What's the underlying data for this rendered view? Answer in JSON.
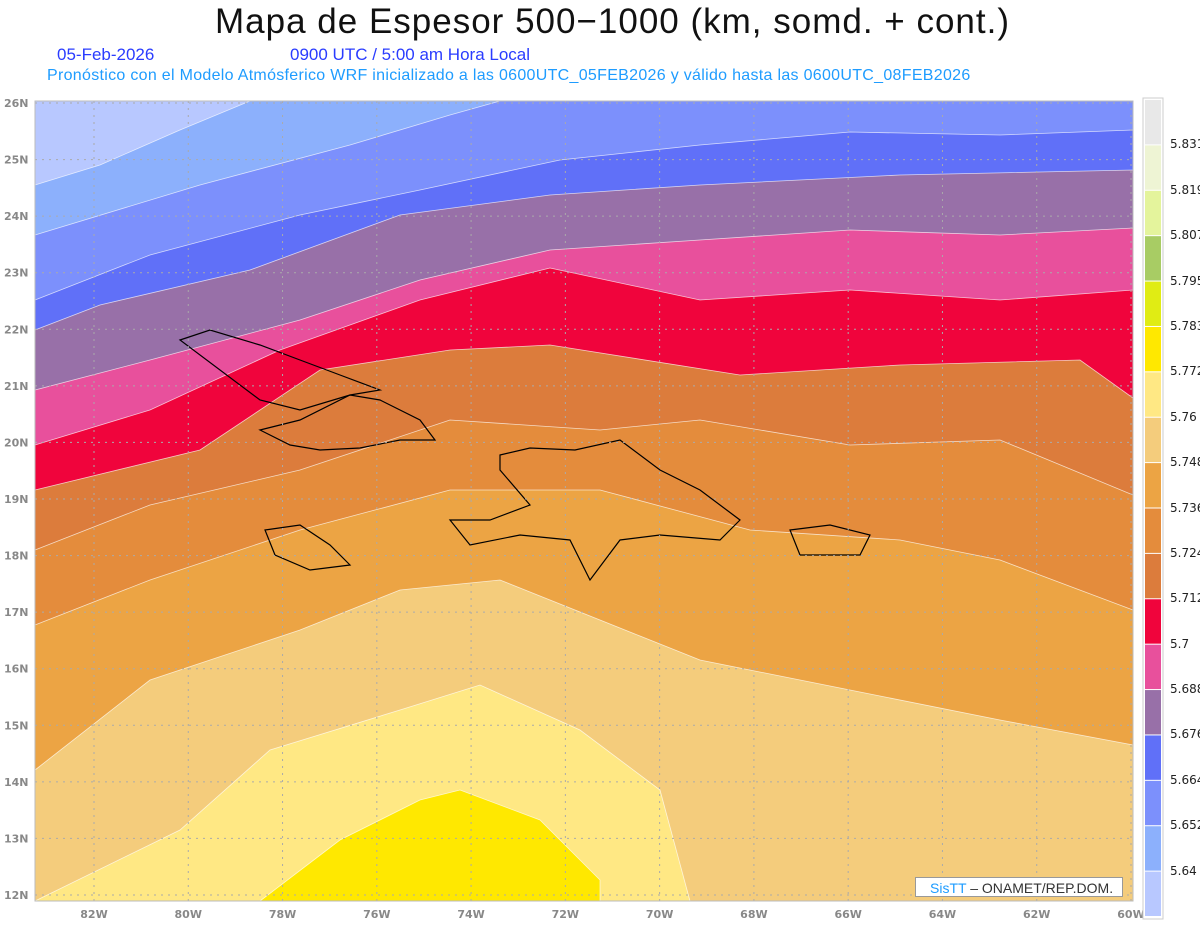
{
  "header": {
    "title": "Mapa de Espesor 500−1000 (km, somd. + cont.)",
    "date": "05-Feb-2026",
    "time": "0900 UTC / 5:00 am Hora Local",
    "description": "Pronóstico con el Modelo Atmósferico WRF inicializado a las 0600UTC_05FEB2026 y válido hasta las  0600UTC_08FEB2026"
  },
  "axes": {
    "lat_labels": [
      "26N",
      "25N",
      "24N",
      "23N",
      "22N",
      "21N",
      "20N",
      "19N",
      "18N",
      "17N",
      "16N",
      "15N",
      "14N",
      "13N",
      "12N"
    ],
    "lon_labels": [
      "82W",
      "80W",
      "78W",
      "76W",
      "74W",
      "72W",
      "70W",
      "68W",
      "66W",
      "64W",
      "62W",
      "60W"
    ]
  },
  "colorbar": {
    "colors": [
      "#e8e8e8",
      "#eef4d4",
      "#e4f49c",
      "#a8cc64",
      "#e0ec14",
      "#ffe800",
      "#ffe884",
      "#f4cc7c",
      "#eca444",
      "#e48c3c",
      "#dc7c3c",
      "#f0043c",
      "#e8509c",
      "#9870a8",
      "#6070f8",
      "#7c90fc",
      "#8cb0fc",
      "#b8c8ff"
    ],
    "labels": [
      "5.831",
      "5.819",
      "5.807",
      "5.795",
      "5.783",
      "5.772",
      "5.76",
      "5.748",
      "5.736",
      "5.724",
      "5.712",
      "5.7",
      "5.688",
      "5.676",
      "5.664",
      "5.652",
      "5.64"
    ]
  },
  "credit": {
    "brand": "SisTT",
    "text": "– ONAMET/REP.DOM."
  }
}
